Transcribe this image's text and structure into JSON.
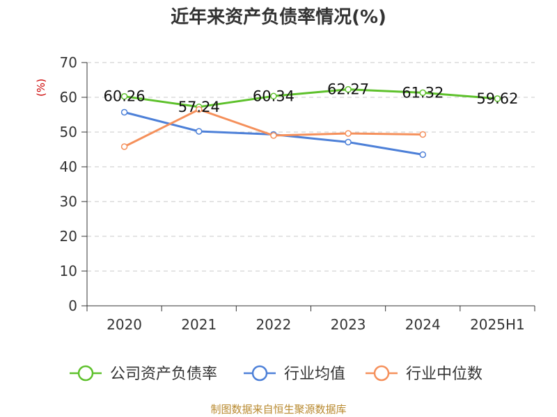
{
  "chart_data": {
    "type": "line",
    "title": "近年来资产负债率情况(%)",
    "ylabel": "(%)",
    "categories": [
      "2020",
      "2021",
      "2022",
      "2023",
      "2024",
      "2025H1"
    ],
    "ylim": [
      0,
      70
    ],
    "yticks": [
      0,
      10,
      20,
      30,
      40,
      50,
      60,
      70
    ],
    "grid": true,
    "legend_position": "bottom",
    "series": [
      {
        "name": "公司资产负债率",
        "color": "#5ec12c",
        "values": [
          60.26,
          57.24,
          60.34,
          62.27,
          61.32,
          59.62
        ],
        "show_labels": true
      },
      {
        "name": "行业均值",
        "color": "#4d80d8",
        "values": [
          55.7,
          50.2,
          49.3,
          47.1,
          43.5,
          null
        ],
        "show_labels": false
      },
      {
        "name": "行业中位数",
        "color": "#f5905b",
        "values": [
          45.8,
          56.5,
          49.0,
          49.6,
          49.3,
          null
        ],
        "show_labels": false
      }
    ]
  },
  "source": "制图数据来自恒生聚源数据库"
}
